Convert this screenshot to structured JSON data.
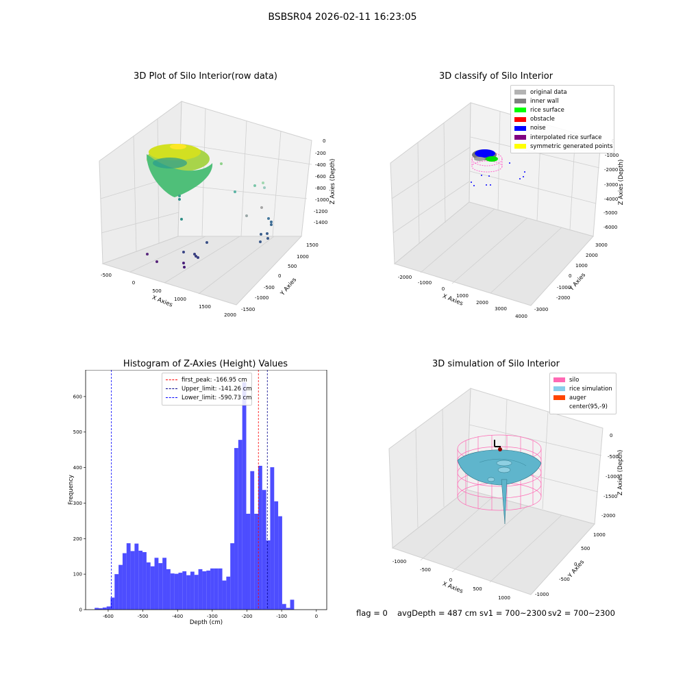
{
  "suptitle": "BSBSR04 2026-02-11 16:23:05",
  "status": {
    "flag": "flag = 0",
    "avg_depth": "avgDepth = 487 cm",
    "sv1": "sv1 = 700~2300",
    "sv2": "sv2 = 700~2300"
  },
  "chart_data": [
    {
      "type": "scatter",
      "projection": "3d",
      "title": "3D Plot of Silo Interior(row data)",
      "xlabel": "X Axies",
      "ylabel": "Y Axies",
      "zlabel": "Z Axies (Depth)",
      "x_ticks": [
        "-500",
        "0",
        "500",
        "1000",
        "1500",
        "2000"
      ],
      "y_ticks": [
        "-1500",
        "-1000",
        "-500",
        "0",
        "500",
        "1000",
        "1500"
      ],
      "z_ticks": [
        "0",
        "-200",
        "-400",
        "-600",
        "-800",
        "-1000",
        "-1200",
        "-1400"
      ],
      "colormap": "viridis"
    },
    {
      "type": "scatter",
      "projection": "3d",
      "title": "3D classify of Silo Interior",
      "xlabel": "X Axies",
      "ylabel": "Y Axies",
      "zlabel": "Z Axies (Depth)",
      "x_ticks": [
        "-2000",
        "-1000",
        "0",
        "1000",
        "2000",
        "3000",
        "4000"
      ],
      "y_ticks": [
        "-3000",
        "-2000",
        "-1000",
        "0",
        "1000",
        "2000",
        "3000"
      ],
      "z_ticks": [
        "0",
        "-1000",
        "-2000",
        "-3000",
        "-4000",
        "-5000",
        "-6000"
      ],
      "legend_position": "top-right",
      "legend": [
        {
          "label": "original data",
          "color": "#b3b3b3"
        },
        {
          "label": "inner wall",
          "color": "#808080"
        },
        {
          "label": "rice surface",
          "color": "#00ff00"
        },
        {
          "label": "obstacle",
          "color": "#ff0000"
        },
        {
          "label": "noise",
          "color": "#0000ff"
        },
        {
          "label": "interpolated rice surface",
          "color": "#800080"
        },
        {
          "label": "symmetric generated points",
          "color": "#ffff00"
        }
      ]
    },
    {
      "type": "bar",
      "title": "Histogram of Z-Axies (Height) Values",
      "xlabel": "Depth (cm)",
      "ylabel": "Frequency",
      "xlim": [
        -665,
        30
      ],
      "ylim": [
        0,
        675
      ],
      "x_ticks": [
        -600,
        -500,
        -400,
        -300,
        -200,
        -100,
        0
      ],
      "y_ticks": [
        0,
        100,
        200,
        300,
        400,
        500,
        600
      ],
      "bar_color": "#4d4dff",
      "bin_width": 11.5,
      "bins": [
        {
          "x": -639,
          "y": 5
        },
        {
          "x": -627.5,
          "y": 4
        },
        {
          "x": -616,
          "y": 6
        },
        {
          "x": -604.5,
          "y": 9
        },
        {
          "x": -593,
          "y": 34
        },
        {
          "x": -581.5,
          "y": 100
        },
        {
          "x": -570,
          "y": 126
        },
        {
          "x": -558.5,
          "y": 159
        },
        {
          "x": -547,
          "y": 187
        },
        {
          "x": -535.5,
          "y": 165
        },
        {
          "x": -524,
          "y": 186
        },
        {
          "x": -512.5,
          "y": 166
        },
        {
          "x": -501,
          "y": 162
        },
        {
          "x": -489.5,
          "y": 133
        },
        {
          "x": -478,
          "y": 122
        },
        {
          "x": -466.5,
          "y": 146
        },
        {
          "x": -455,
          "y": 131
        },
        {
          "x": -443.5,
          "y": 146
        },
        {
          "x": -432,
          "y": 114
        },
        {
          "x": -420.5,
          "y": 102
        },
        {
          "x": -409,
          "y": 101
        },
        {
          "x": -397.5,
          "y": 104
        },
        {
          "x": -386,
          "y": 108
        },
        {
          "x": -374.5,
          "y": 97
        },
        {
          "x": -363,
          "y": 107
        },
        {
          "x": -351.5,
          "y": 98
        },
        {
          "x": -340,
          "y": 114
        },
        {
          "x": -328.5,
          "y": 108
        },
        {
          "x": -317,
          "y": 110
        },
        {
          "x": -305.5,
          "y": 116
        },
        {
          "x": -294,
          "y": 116
        },
        {
          "x": -282.5,
          "y": 116
        },
        {
          "x": -271,
          "y": 82
        },
        {
          "x": -259.5,
          "y": 93
        },
        {
          "x": -248,
          "y": 187
        },
        {
          "x": -236.5,
          "y": 455
        },
        {
          "x": -225,
          "y": 478
        },
        {
          "x": -213.5,
          "y": 640
        },
        {
          "x": -202,
          "y": 270
        },
        {
          "x": -190.5,
          "y": 390
        },
        {
          "x": -179,
          "y": 270
        },
        {
          "x": -167.5,
          "y": 405
        },
        {
          "x": -156,
          "y": 337
        },
        {
          "x": -144.5,
          "y": 195
        },
        {
          "x": -133,
          "y": 401
        },
        {
          "x": -121.5,
          "y": 305
        },
        {
          "x": -110,
          "y": 263
        },
        {
          "x": -98.5,
          "y": 16
        },
        {
          "x": -87,
          "y": 5
        },
        {
          "x": -75.5,
          "y": 28
        },
        {
          "x": -64,
          "y": 0
        }
      ],
      "vlines": [
        {
          "label": "first_peak: -166.95 cm",
          "x": -166.95,
          "color": "#ff0000"
        },
        {
          "label": "Upper_limit: -141.26 cm",
          "x": -141.26,
          "color": "#00008b"
        },
        {
          "label": "Lower_limit: -590.73 cm",
          "x": -590.73,
          "color": "#0000ff"
        }
      ],
      "legend_position": "top-center"
    },
    {
      "type": "surface",
      "projection": "3d",
      "title": "3D simulation of Silo Interior",
      "xlabel": "X Axies",
      "ylabel": "Y Axies",
      "zlabel": "Z Axies (Depth)",
      "x_ticks": [
        "-1000",
        "-500",
        "0",
        "500",
        "1000"
      ],
      "y_ticks": [
        "-1000",
        "-500",
        "0",
        "500",
        "1000"
      ],
      "z_ticks": [
        "0",
        "-500",
        "-1000",
        "-1500",
        "-2000"
      ],
      "legend_position": "top-right",
      "legend": [
        {
          "label": "silo",
          "color": "#ff69b4"
        },
        {
          "label": "rice simulation",
          "color": "#87ceeb"
        },
        {
          "label": "auger",
          "color": "#ff4500"
        },
        {
          "label": "center(95,-9)",
          "color": "#ffffff"
        }
      ]
    }
  ]
}
